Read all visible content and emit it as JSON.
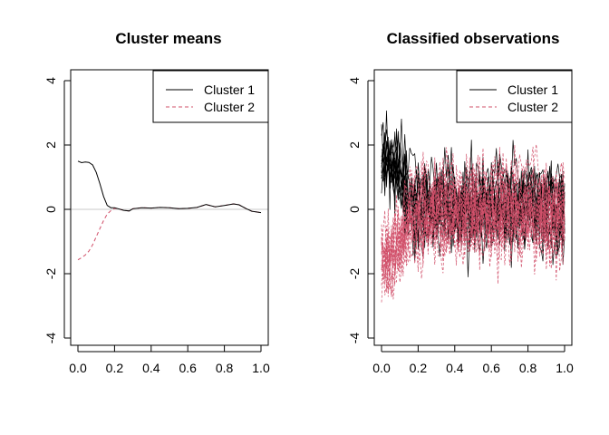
{
  "chart_data": [
    {
      "type": "line",
      "title": "Cluster means",
      "xlabel": "",
      "ylabel": "",
      "xlim": [
        0,
        1
      ],
      "ylim": [
        -4,
        4
      ],
      "xticks": [
        "0.0",
        "0.2",
        "0.4",
        "0.6",
        "0.8",
        "1.0"
      ],
      "yticks": [
        "-4",
        "-2",
        "0",
        "2",
        "4"
      ],
      "reference_line": {
        "y": 0,
        "color": "#c8c8c8"
      },
      "legend": {
        "position": "top-right",
        "entries": [
          "Cluster 1",
          "Cluster 2"
        ]
      },
      "series": [
        {
          "name": "Cluster 1",
          "color": "#000000",
          "style": "solid",
          "x": [
            0.0,
            0.02,
            0.04,
            0.06,
            0.08,
            0.1,
            0.12,
            0.14,
            0.16,
            0.18,
            0.2,
            0.22,
            0.25,
            0.28,
            0.3,
            0.35,
            0.4,
            0.45,
            0.5,
            0.55,
            0.6,
            0.65,
            0.7,
            0.75,
            0.8,
            0.85,
            0.88,
            0.92,
            0.95,
            1.0
          ],
          "values": [
            1.5,
            1.45,
            1.47,
            1.46,
            1.38,
            1.15,
            0.8,
            0.4,
            0.12,
            0.05,
            0.05,
            0.02,
            -0.03,
            -0.05,
            0.02,
            0.05,
            0.04,
            0.06,
            0.05,
            0.02,
            0.03,
            0.06,
            0.15,
            0.08,
            0.12,
            0.17,
            0.14,
            0.02,
            -0.06,
            -0.1
          ]
        },
        {
          "name": "Cluster 2",
          "color": "#d1506a",
          "style": "dashed",
          "x": [
            0.0,
            0.02,
            0.04,
            0.06,
            0.08,
            0.1,
            0.12,
            0.14,
            0.16,
            0.18,
            0.2,
            0.22,
            0.25,
            0.28,
            0.3,
            0.35,
            0.4,
            0.45,
            0.5,
            0.55,
            0.6,
            0.65,
            0.7,
            0.75,
            0.8,
            0.85,
            0.88,
            0.92,
            0.95,
            1.0
          ],
          "values": [
            -1.57,
            -1.5,
            -1.42,
            -1.3,
            -1.1,
            -0.85,
            -0.6,
            -0.35,
            -0.15,
            -0.04,
            0.03,
            0.02,
            -0.03,
            -0.05,
            0.02,
            0.05,
            0.04,
            0.06,
            0.05,
            0.02,
            0.03,
            0.06,
            0.15,
            0.08,
            0.12,
            0.17,
            0.14,
            0.02,
            -0.06,
            -0.1
          ]
        }
      ]
    },
    {
      "type": "line",
      "title": "Classified observations",
      "xlabel": "",
      "ylabel": "",
      "xlim": [
        0,
        1
      ],
      "ylim": [
        -4,
        4
      ],
      "xticks": [
        "0.0",
        "0.2",
        "0.4",
        "0.6",
        "0.8",
        "1.0"
      ],
      "yticks": [
        "-4",
        "-2",
        "0",
        "2",
        "4"
      ],
      "legend": {
        "position": "top-right",
        "entries": [
          "Cluster 1",
          "Cluster 2"
        ]
      },
      "series": [
        {
          "name": "Cluster 1",
          "color": "#000000",
          "style": "solid",
          "description_of_spread": "many noisy curves, high (about 0.5 to 4) near x=0-0.1, then around 0 with spread about -2.5 to 2.5",
          "center_values_x": [
            0.0,
            0.05,
            0.1,
            0.15,
            0.2,
            0.4,
            0.6,
            0.8,
            1.0
          ],
          "center_values": [
            1.5,
            1.45,
            1.15,
            0.3,
            0.05,
            0.04,
            0.03,
            0.12,
            -0.1
          ]
        },
        {
          "name": "Cluster 2",
          "color": "#d1506a",
          "style": "dashed",
          "description_of_spread": "many noisy curves, low (about -3.8 to 0) near x=0-0.1, then around 0 with spread about -3 to 3",
          "center_values_x": [
            0.0,
            0.05,
            0.1,
            0.15,
            0.2,
            0.4,
            0.6,
            0.8,
            1.0
          ],
          "center_values": [
            -1.57,
            -1.35,
            -0.85,
            -0.25,
            0.03,
            0.04,
            0.03,
            0.12,
            -0.1
          ]
        }
      ]
    }
  ]
}
